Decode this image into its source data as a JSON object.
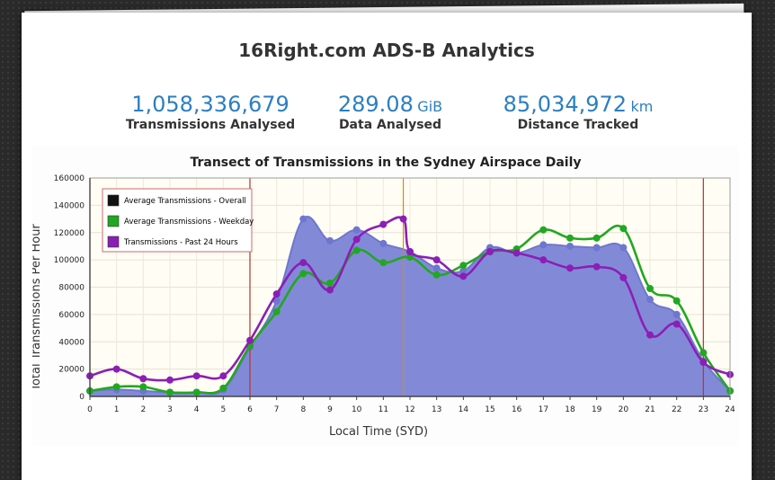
{
  "page": {
    "title": "16Right.com ADS-B Analytics"
  },
  "stats": [
    {
      "value": "1,058,336,679",
      "unit": "",
      "label": "Transmissions Analysed"
    },
    {
      "value": "289.08",
      "unit": "GiB",
      "label": "Data Analysed"
    },
    {
      "value": "85,034,972",
      "unit": "km",
      "label": "Distance Tracked"
    }
  ],
  "colors": {
    "stat_blue": "#2b7fc1",
    "area_fill": "#7b84d6",
    "overall": "#6e76cf",
    "weekday": "#22a722",
    "past24": "#8b1fb5",
    "marker_red": "#b8322f",
    "marker_orange": "#e08a00"
  },
  "chart_data": {
    "type": "line",
    "title": "Transect of Transmissions in the Sydney Airspace Daily",
    "xlabel": "Local Time (SYD)",
    "ylabel": "Total Transmissions Per Hour",
    "xlim": [
      0,
      24
    ],
    "ylim": [
      0,
      160000
    ],
    "x_ticks": [
      0,
      1,
      2,
      3,
      4,
      5,
      6,
      7,
      8,
      9,
      10,
      11,
      12,
      13,
      14,
      15,
      16,
      17,
      18,
      19,
      20,
      21,
      22,
      23,
      24
    ],
    "y_ticks": [
      0,
      20000,
      40000,
      60000,
      80000,
      100000,
      120000,
      140000,
      160000
    ],
    "grid": true,
    "legend_position": "top-left",
    "vertical_markers": [
      {
        "x": 6,
        "color": "#b8322f"
      },
      {
        "x": 11.75,
        "color": "#e08a00"
      },
      {
        "x": 23,
        "color": "#b8322f"
      }
    ],
    "series": [
      {
        "name": "Average Transmissions - Overall",
        "style": "area",
        "x": [
          0,
          1,
          2,
          3,
          4,
          5,
          6,
          7,
          8,
          9,
          10,
          11,
          12,
          13,
          14,
          15,
          16,
          17,
          18,
          19,
          20,
          21,
          22,
          23,
          24
        ],
        "values": [
          4000,
          5000,
          4000,
          3000,
          3000,
          5000,
          36000,
          70000,
          130000,
          114000,
          122000,
          112000,
          106000,
          94000,
          92000,
          109000,
          105000,
          111000,
          110000,
          109000,
          109000,
          71000,
          60000,
          26000,
          4000
        ]
      },
      {
        "name": "Average Transmissions - Weekday",
        "style": "line",
        "x": [
          0,
          1,
          2,
          3,
          4,
          5,
          6,
          7,
          8,
          9,
          10,
          11,
          12,
          13,
          14,
          15,
          16,
          17,
          18,
          19,
          20,
          21,
          22,
          23,
          24
        ],
        "values": [
          4000,
          7000,
          7000,
          3000,
          3000,
          6000,
          37000,
          62000,
          90000,
          83000,
          107000,
          98000,
          102000,
          89000,
          96000,
          106000,
          108000,
          122000,
          116000,
          116000,
          123000,
          79000,
          70000,
          32000,
          4000
        ]
      },
      {
        "name": "Transmissions - Past 24 Hours",
        "style": "line",
        "x": [
          0,
          1,
          2,
          3,
          4,
          5,
          6,
          7,
          8,
          9,
          10,
          11,
          11.75,
          12,
          13,
          14,
          15,
          16,
          17,
          18,
          19,
          20,
          21,
          22,
          23,
          24
        ],
        "values": [
          15000,
          20000,
          13000,
          12000,
          15000,
          15000,
          41000,
          75000,
          98000,
          78000,
          115000,
          126000,
          130000,
          106000,
          100000,
          88000,
          106000,
          105000,
          100000,
          94000,
          95000,
          87000,
          45000,
          53000,
          25000,
          16000
        ]
      }
    ]
  }
}
